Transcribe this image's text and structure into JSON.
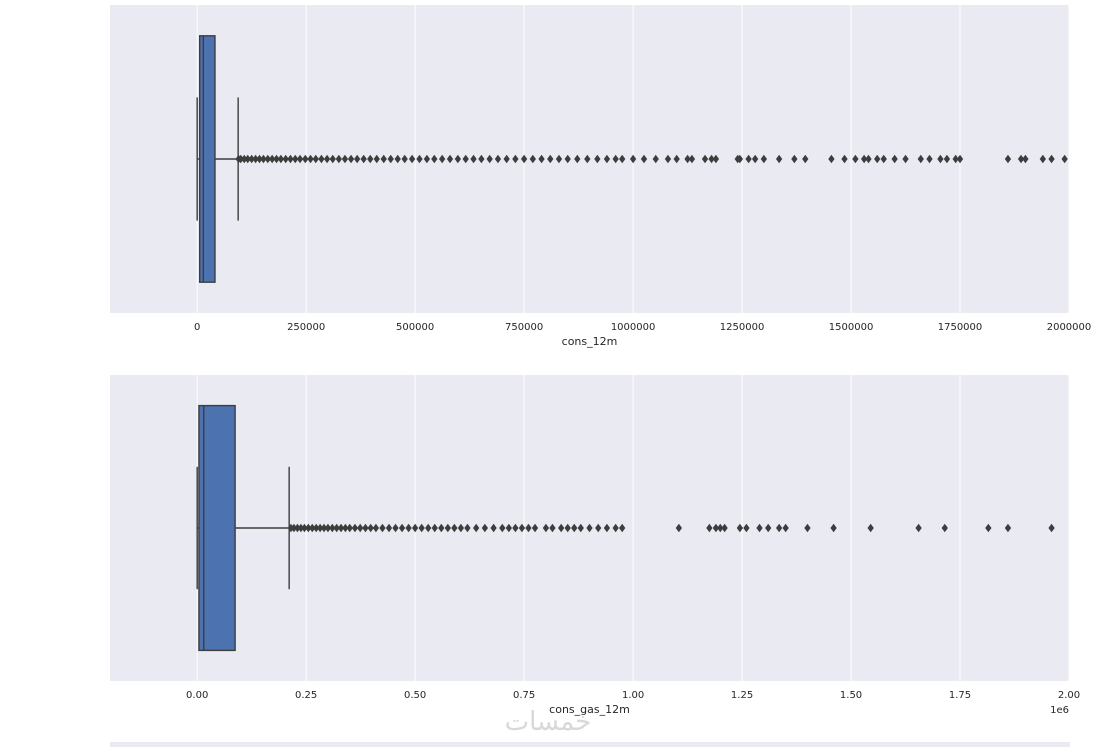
{
  "chart_data": [
    {
      "type": "box",
      "orientation": "horizontal",
      "xlabel": "cons_12m",
      "xlim": [
        -200000,
        2000000
      ],
      "tick_labels": [
        "0",
        "250000",
        "500000",
        "750000",
        "1000000",
        "1250000",
        "1500000",
        "1750000",
        "2000000"
      ],
      "ticks": [
        0,
        250000,
        500000,
        750000,
        1000000,
        1250000,
        1500000,
        1750000,
        2000000
      ],
      "grid": true,
      "box": {
        "min": 0,
        "q1": 5700,
        "median": 14100,
        "q3": 40800,
        "whisker_low": 0,
        "whisker_high": 94000
      },
      "outliers": [
        95000,
        100000,
        108000,
        116000,
        125000,
        134000,
        143000,
        152000,
        162000,
        172000,
        182000,
        192000,
        203000,
        214000,
        225000,
        236000,
        248000,
        260000,
        272000,
        285000,
        298000,
        311000,
        325000,
        339000,
        353000,
        367000,
        382000,
        397000,
        412000,
        428000,
        444000,
        460000,
        476000,
        493000,
        510000,
        527000,
        544000,
        562000,
        580000,
        598000,
        616000,
        634000,
        652000,
        671000,
        690000,
        710000,
        730000,
        750000,
        770000,
        790000,
        810000,
        830000,
        850000,
        872000,
        895000,
        918000,
        940000,
        960000,
        975000,
        1000000,
        1025000,
        1052000,
        1080000,
        1100000,
        1125000,
        1135000,
        1165000,
        1180000,
        1190000,
        1240000,
        1245000,
        1265000,
        1280000,
        1300000,
        1335000,
        1370000,
        1395000,
        1455000,
        1485000,
        1510000,
        1530000,
        1540000,
        1560000,
        1575000,
        1600000,
        1625000,
        1660000,
        1680000,
        1705000,
        1720000,
        1740000,
        1750000,
        1860000,
        1890000,
        1900000,
        1940000,
        1960000,
        1990000
      ],
      "color": "#4c72b0",
      "background": "#eaeaf2"
    },
    {
      "type": "box",
      "orientation": "horizontal",
      "xlabel": "cons_gas_12m",
      "xlim": [
        -200000,
        2000000
      ],
      "tick_labels": [
        "0.00",
        "0.25",
        "0.50",
        "0.75",
        "1.00",
        "1.25",
        "1.50",
        "1.75",
        "2.00"
      ],
      "ticks": [
        0,
        250000,
        500000,
        750000,
        1000000,
        1250000,
        1500000,
        1750000,
        2000000
      ],
      "offset_label": "1e6",
      "grid": true,
      "box": {
        "min": 0,
        "q1": 4000,
        "median": 15000,
        "q3": 87000,
        "whisker_low": 0,
        "whisker_high": 211000
      },
      "outliers": [
        215000,
        222000,
        230000,
        238000,
        246000,
        255000,
        264000,
        273000,
        282000,
        291000,
        300000,
        310000,
        320000,
        330000,
        340000,
        350000,
        362000,
        374000,
        386000,
        398000,
        410000,
        425000,
        440000,
        455000,
        470000,
        485000,
        500000,
        515000,
        530000,
        545000,
        560000,
        575000,
        590000,
        605000,
        620000,
        640000,
        660000,
        680000,
        700000,
        715000,
        730000,
        745000,
        760000,
        775000,
        800000,
        815000,
        835000,
        850000,
        865000,
        880000,
        900000,
        920000,
        940000,
        960000,
        975000,
        1105000,
        1175000,
        1190000,
        1200000,
        1210000,
        1245000,
        1260000,
        1290000,
        1310000,
        1335000,
        1350000,
        1400000,
        1460000,
        1545000,
        1655000,
        1715000,
        1815000,
        1860000,
        1960000
      ],
      "color": "#4c72b0",
      "background": "#eaeaf2"
    }
  ],
  "watermark": "خمسات"
}
